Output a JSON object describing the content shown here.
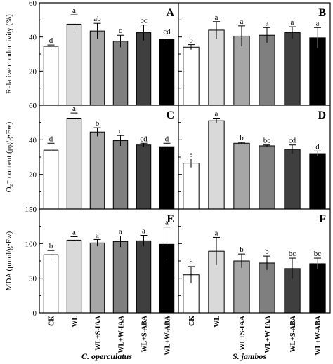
{
  "figure": {
    "group_labels": [
      "C. operculatus",
      "S. jambos"
    ],
    "treatments": [
      "CK",
      "WL",
      "WL+S-IAA",
      "WL+W-IAA",
      "WL+S-ABA",
      "WL+W-ABA"
    ],
    "bar_colors": [
      "#ffffff",
      "#d9d9d9",
      "#a6a6a6",
      "#7f7f7f",
      "#3f3f3f",
      "#000000"
    ]
  },
  "chart_data": [
    {
      "type": "bar",
      "panel": "A",
      "ylabel": "Relative conductivity (%)",
      "ylim": [
        0,
        60
      ],
      "yticks": [
        0,
        20,
        40,
        60
      ],
      "categories": [
        "CK",
        "WL",
        "WL+S-IAA",
        "WL+W-IAA",
        "WL+S-ABA",
        "WL+W-ABA"
      ],
      "values": [
        34.5,
        47.5,
        43.5,
        37.5,
        42.5,
        38.5
      ],
      "errors": [
        0.8,
        5.5,
        4.5,
        3.5,
        4.5,
        2.0
      ],
      "letters": [
        "d",
        "a",
        "ab",
        "c",
        "bc",
        "cd"
      ]
    },
    {
      "type": "bar",
      "panel": "B",
      "ylabel": "",
      "ylim": [
        0,
        60
      ],
      "yticks": [
        0,
        20,
        40,
        60
      ],
      "categories": [
        "CK",
        "WL",
        "WL+S-IAA",
        "WL+W-IAA",
        "WL+S-ABA",
        "WL+W-ABA"
      ],
      "values": [
        34.0,
        44.0,
        40.5,
        41.0,
        42.5,
        39.5
      ],
      "errors": [
        1.5,
        5.0,
        6.0,
        4.5,
        3.5,
        6.0
      ],
      "letters": [
        "b",
        "a",
        "a",
        "a",
        "a",
        "a"
      ]
    },
    {
      "type": "bar",
      "panel": "C",
      "ylabel": "O₂⁻ content (μg/g•Fw)",
      "ylim": [
        0,
        60
      ],
      "yticks": [
        0,
        20,
        40,
        60
      ],
      "categories": [
        "CK",
        "WL",
        "WL+S-IAA",
        "WL+W-IAA",
        "WL+S-ABA",
        "WL+W-ABA"
      ],
      "values": [
        34.0,
        52.5,
        44.5,
        39.5,
        37.0,
        36.0
      ],
      "errors": [
        4.0,
        3.0,
        2.5,
        3.0,
        1.0,
        2.0
      ],
      "letters": [
        "d",
        "a",
        "b",
        "c",
        "cd",
        "d"
      ]
    },
    {
      "type": "bar",
      "panel": "D",
      "ylabel": "",
      "ylim": [
        0,
        60
      ],
      "yticks": [
        0,
        20,
        40,
        60
      ],
      "categories": [
        "CK",
        "WL",
        "WL+S-IAA",
        "WL+W-IAA",
        "WL+S-ABA",
        "WL+W-ABA"
      ],
      "values": [
        26.5,
        51.0,
        38.0,
        36.5,
        34.5,
        32.0
      ],
      "errors": [
        2.5,
        1.5,
        0.5,
        0.5,
        2.5,
        1.5
      ],
      "letters": [
        "e",
        "a",
        "b",
        "bc",
        "cd",
        "d"
      ]
    },
    {
      "type": "bar",
      "panel": "E",
      "ylabel": "MDA (μmol/g•Fw)",
      "ylim": [
        0,
        150
      ],
      "yticks": [
        0,
        50,
        100,
        150
      ],
      "categories": [
        "CK",
        "WL",
        "WL+S-IAA",
        "WL+W-IAA",
        "WL+S-ABA",
        "WL+W-ABA"
      ],
      "values": [
        84,
        105,
        101,
        103,
        104,
        99
      ],
      "errors": [
        6,
        5,
        5,
        8,
        8,
        25
      ],
      "letters": [
        "b",
        "a",
        "a",
        "a",
        "a",
        "a"
      ]
    },
    {
      "type": "bar",
      "panel": "F",
      "ylabel": "",
      "ylim": [
        0,
        150
      ],
      "yticks": [
        0,
        50,
        100,
        150
      ],
      "categories": [
        "CK",
        "WL",
        "WL+S-IAA",
        "WL+W-IAA",
        "WL+S-ABA",
        "WL+W-ABA"
      ],
      "values": [
        55,
        89,
        75,
        72,
        64,
        71
      ],
      "errors": [
        12,
        20,
        10,
        10,
        15,
        8
      ],
      "letters": [
        "c",
        "a",
        "b",
        "b",
        "bc",
        "bc"
      ]
    }
  ]
}
